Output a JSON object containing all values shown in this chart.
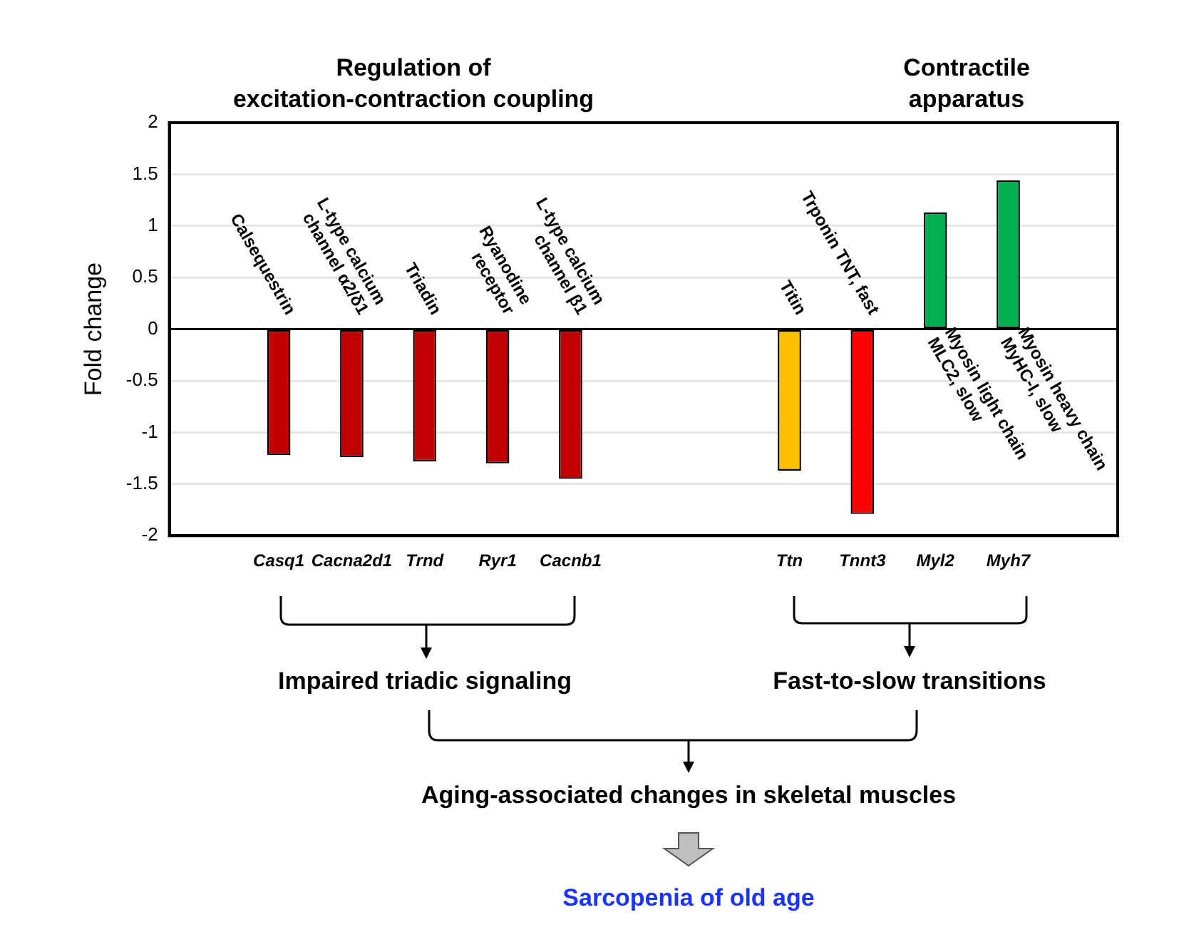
{
  "chart_data": {
    "type": "bar",
    "ylabel": "Fold change",
    "categories": [
      null,
      "Casq1",
      "Cacna2d1",
      "Trnd",
      "Ryr1",
      "Cacnb1",
      null,
      null,
      "Ttn",
      "Tnnt3",
      "Myl2",
      "Myh7",
      null
    ],
    "values": [
      null,
      -1.22,
      -1.24,
      -1.28,
      -1.3,
      -1.45,
      null,
      null,
      -1.37,
      -1.79,
      1.13,
      1.44,
      null
    ],
    "colors": [
      null,
      "#c00000",
      "#c00000",
      "#c00000",
      "#c00000",
      "#c00000",
      null,
      null,
      "#ffc000",
      "#ff0000",
      "#00b050",
      "#00b050",
      null
    ],
    "ylim": [
      -2,
      2
    ],
    "yticks": [
      -2,
      -1.5,
      -1,
      -0.5,
      0,
      0.5,
      1,
      1.5,
      2
    ],
    "grid": "y",
    "legend": false,
    "annotations": [
      "Calsequestrin",
      "L-type calcium\nchannel α2/δ1",
      "Triadin",
      "Ryanodine\nreceptor",
      "L-type calcium\nchannel β1",
      "Titin",
      "Trponin TNT, fast",
      "Myosin light chain\nMLC2, slow",
      "Myosin heavy chain\nMyHC-I, slow",
      "Regulation of\nexcitation-contraction coupling",
      "Contractile\napparatus",
      "Impaired triadic signaling",
      "Fast-to-slow transitions",
      "Aging-associated changes in skeletal muscles",
      "Sarcopenia of old age"
    ]
  }
}
